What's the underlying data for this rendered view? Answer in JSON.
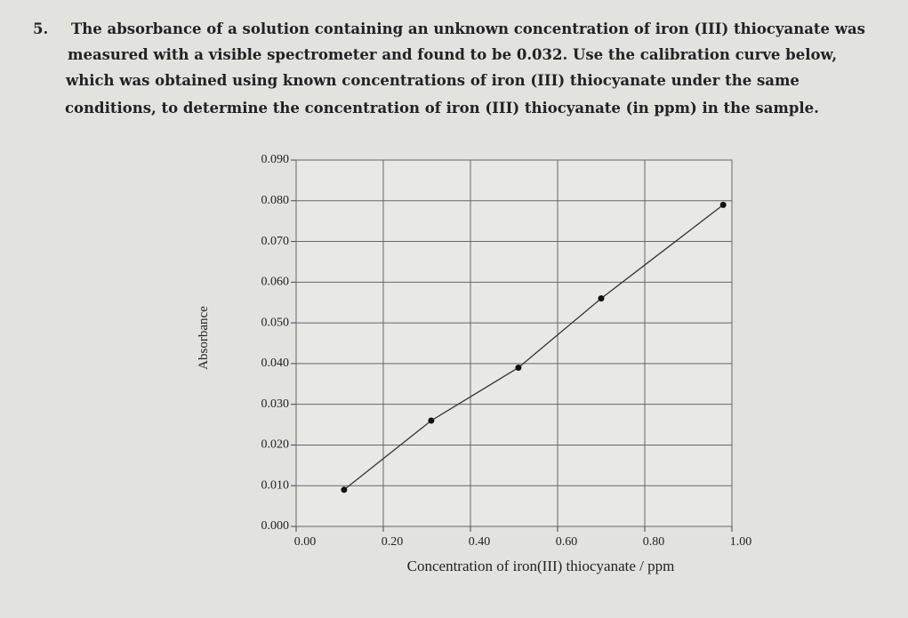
{
  "question": {
    "number": "5.",
    "lines": [
      "The absorbance of a solution containing an unknown concentration of iron (III) thiocyanate was",
      "measured with a visible spectrometer and found to be 0.032. Use the calibration curve below,",
      "which was obtained using known concentrations of iron (III) thiocyanate under the same",
      "conditions, to determine the concentration of iron (III) thiocyanate (in ppm) in the sample."
    ]
  },
  "chart_data": {
    "type": "line",
    "x_label": "Concentration of iron(III) thiocyanate / ppm",
    "y_label": "Absorbance",
    "x": [
      0.11,
      0.31,
      0.51,
      0.7,
      0.98
    ],
    "series": [
      {
        "name": "calibration",
        "color": "#333333",
        "values": [
          0.009,
          0.026,
          0.039,
          0.056,
          0.079
        ]
      }
    ],
    "xlim": [
      0,
      1.0
    ],
    "ylim": [
      0,
      0.09
    ],
    "xticks": [
      {
        "value": 0,
        "label": "0.00"
      },
      {
        "value": 0.2,
        "label": "0.20"
      },
      {
        "value": 0.4,
        "label": "0.40"
      },
      {
        "value": 0.6,
        "label": "0.60"
      },
      {
        "value": 0.8,
        "label": "0.80"
      },
      {
        "value": 1.0,
        "label": "1.00"
      }
    ],
    "yticks": [
      {
        "value": 0,
        "label": "0.000"
      },
      {
        "value": 0.01,
        "label": "0.010"
      },
      {
        "value": 0.02,
        "label": "0.020"
      },
      {
        "value": 0.03,
        "label": "0.030"
      },
      {
        "value": 0.04,
        "label": "0.040"
      },
      {
        "value": 0.05,
        "label": "0.050"
      },
      {
        "value": 0.06,
        "label": "0.060"
      },
      {
        "value": 0.07,
        "label": "0.070"
      },
      {
        "value": 0.08,
        "label": "0.080"
      },
      {
        "value": 0.09,
        "label": "0.090"
      }
    ],
    "grid": true
  }
}
